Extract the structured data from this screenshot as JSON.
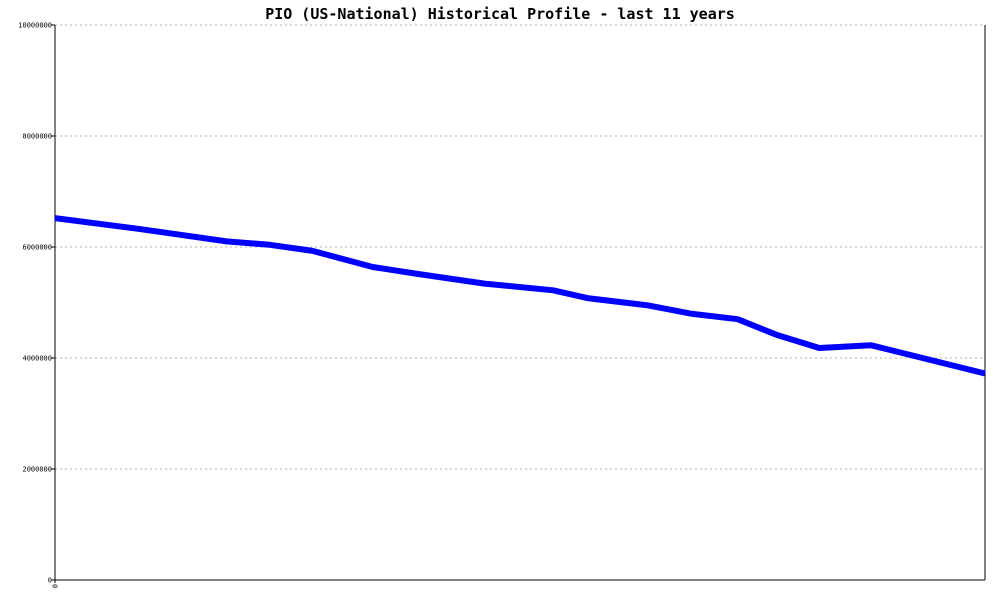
{
  "colors": {
    "background": "#ffffff",
    "axis": "#000000",
    "grid": "#b0b0b0",
    "series": "#0000ff"
  },
  "chart_data": {
    "type": "line",
    "title": "PIO (US-National) Historical Profile - last 11 years",
    "xlabel": "",
    "ylabel": "",
    "ylim": [
      0,
      10000000
    ],
    "xlim": [
      0,
      10.83
    ],
    "grid": true,
    "legend": "none",
    "x_tick_labels": [
      "0"
    ],
    "y_ticks": [
      0,
      2000000,
      4000000,
      6000000,
      8000000,
      10000000
    ],
    "y_tick_labels": [
      "0",
      "2000000",
      "4000000",
      "6000000",
      "8000000",
      "10000000"
    ],
    "series": [
      {
        "name": "",
        "color": "#0000ff",
        "x": [
          0,
          1,
          2,
          2.5,
          3,
          3.7,
          4.2,
          5,
          5.8,
          6.2,
          6.9,
          7.4,
          7.95,
          8.4,
          8.9,
          9.5,
          10.83
        ],
        "values": [
          6520000,
          6320000,
          6100000,
          6040000,
          5930000,
          5640000,
          5520000,
          5340000,
          5220000,
          5080000,
          4950000,
          4800000,
          4700000,
          4420000,
          4180000,
          4230000,
          3720000
        ]
      }
    ]
  }
}
